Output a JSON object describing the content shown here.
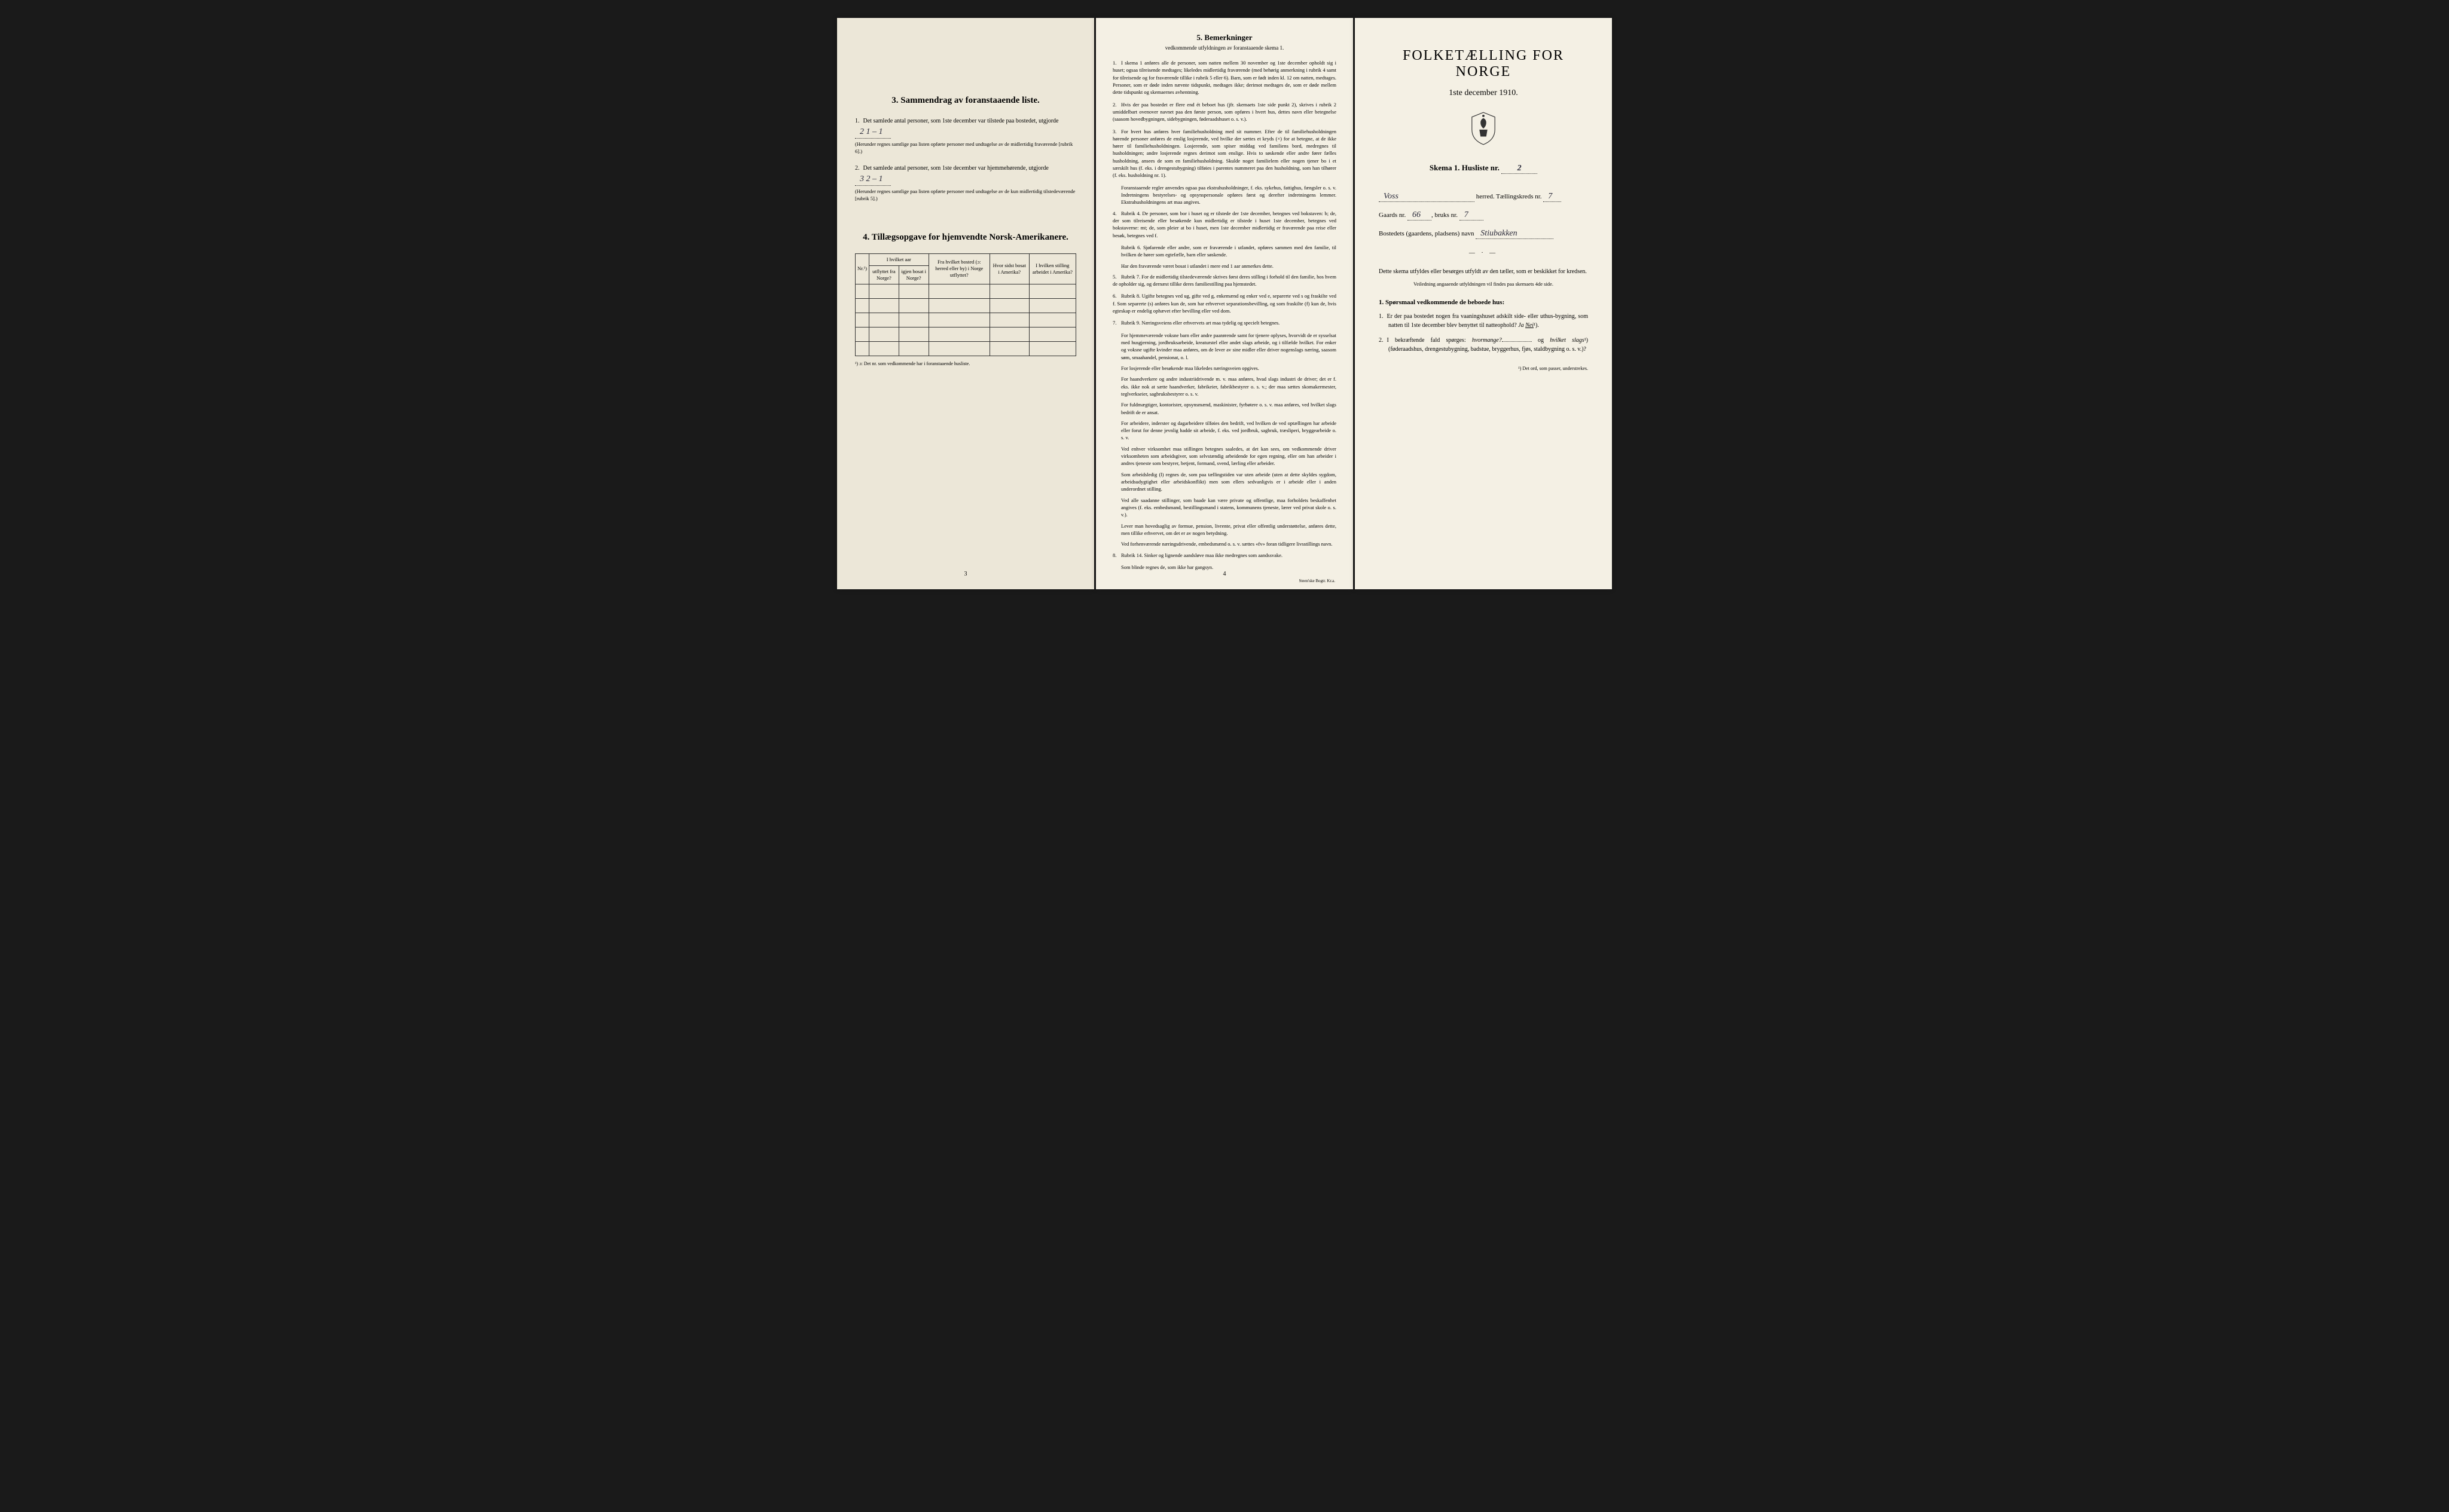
{
  "colors": {
    "page_bg": "#f4f0e4",
    "page_left_bg": "#ece7d8",
    "body_bg": "#1a1a1a",
    "text": "#1a1a1a",
    "handwritten": "#2a2a3a"
  },
  "left": {
    "section3": {
      "heading": "3.   Sammendrag av foranstaaende liste.",
      "item1_pre": "Det samlede antal personer, som 1ste december var tilstede paa bostedet, utgjorde",
      "item1_value": "2    1 – 1",
      "item1_note": "(Herunder regnes samtlige paa listen opførte personer med undtagelse av de midlertidig fraværende [rubrik 6].)",
      "item2_pre": "Det samlede antal personer, som 1ste december var hjemmehørende, utgjorde",
      "item2_value": "3   2 – 1",
      "item2_note": "(Herunder regnes samtlige paa listen opførte personer med undtagelse av de kun midlertidig tilstedeværende [rubrik 5].)"
    },
    "section4": {
      "heading": "4.   Tillægsopgave for hjemvendte Norsk-Amerikanere.",
      "cols": [
        "Nr.¹)",
        "I hvilket aar utflyttet fra Norge?",
        "igjen bosat i Norge?",
        "Fra hvilket bosted (ɔ: herred eller by) i Norge utflyttet?",
        "Hvor sidst bosat i Amerika?",
        "I hvilken stilling arbeidet i Amerika?"
      ],
      "footnote": "¹) ɔ: Det nr. som vedkommende har i foranstaaende husliste."
    },
    "page_no": "3"
  },
  "center": {
    "heading": "5.   Bemerkninger",
    "subtitle": "vedkommende utfyldningen av foranstaaende skema 1.",
    "items": [
      {
        "n": "1.",
        "text": "I skema 1 anføres alle de personer, som natten mellem 30 november og 1ste december opholdt sig i huset; ogsaa tilreisende medtages; likeledes midlertidig fraværende (med behørig anmerkning i rubrik 4 samt for tilreisende og for fraværende tillike i rubrik 5 eller 6). Barn, som er født inden kl. 12 om natten, medtages. Personer, som er døde inden nævnte tidspunkt, medtages ikke; derimot medtages de, som er døde mellem dette tidspunkt og skemaernes avhentning."
      },
      {
        "n": "2.",
        "text": "Hvis der paa bostedet er flere end ét beboet hus (jfr. skemaets 1ste side punkt 2), skrives i rubrik 2 umiddelbart ovenover navnet paa den første person, som opføres i hvert hus, dettes navn eller betegnelse (saasom hovedbygningen, sidebygningen, føderaadshuset o. s. v.)."
      },
      {
        "n": "3.",
        "text": "For hvert hus anføres hver familiehusholdning med sit nummer. Efter de til familiehusholdningen hørende personer anføres de enslig losjerende, ved hvilke der sættes et kryds (×) for at betegne, at de ikke hører til familiehusholdningen. Losjerende, som spiser middag ved familiens bord, medregnes til husholdningen; andre losjerende regnes derimot som enslige. Hvis to søskende eller andre fører fælles husholdning, ansees de som en familiehusholdning. Skulde noget familielem eller nogen tjener bo i et særskilt hus (f. eks. i drengestubygning) tilføies i parentes nummeret paa den husholdning, som han tilhører (f. eks. husholdning nr. 1)."
      },
      {
        "sub": true,
        "text": "Foranstaaende regler anvendes ogsaa paa ekstrahusholdninger, f. eks. sykehus, fattighus, fængsler o. s. v. Indretningens bestyrelses- og opsynspersonale opføres først og derefter indretningens lemmer. Ekstrahusholdningens art maa angives."
      },
      {
        "n": "4.",
        "text": "Rubrik 4. De personer, som bor i huset og er tilstede der 1ste december, betegnes ved bokstaven: b; de, der som tilreisende eller besøkende kun midlertidig er tilstede i huset 1ste december, betegnes ved bokstaverne: mt; de, som pleier at bo i huset, men 1ste december midlertidig er fraværende paa reise eller besøk, betegnes ved f."
      },
      {
        "sub": true,
        "text": "Rubrik 6. Sjøfarende eller andre, som er fraværende i utlandet, opføres sammen med den familie, til hvilken de hører som egtefælle, barn eller søskende."
      },
      {
        "sub": true,
        "text": "Har den fraværende været bosat i utlandet i mere end 1 aar anmerkes dette."
      },
      {
        "n": "5.",
        "text": "Rubrik 7. For de midlertidig tilstedeværende skrives først deres stilling i forhold til den familie, hos hvem de opholder sig, og dernæst tillike deres familiestilling paa hjemstedet."
      },
      {
        "n": "6.",
        "text": "Rubrik 8. Ugifte betegnes ved ug, gifte ved g, enkemænd og enker ved e, separerte ved s og fraskilte ved f. Som separerte (s) anføres kun de, som har erhvervet separationsbevilling, og som fraskilte (f) kun de, hvis egteskap er endelig ophævet efter bevilling eller ved dom."
      },
      {
        "n": "7.",
        "text": "Rubrik 9. Næringsveiens eller erhvervets art maa tydelig og specielt betegnes."
      },
      {
        "sub": true,
        "text": "For hjemmeværende voksne barn eller andre paarørende samt for tjenere oplyses, hvorvidt de er sysselsat med husgjerning, jordbruksarbeide, kreaturstel eller andet slags arbeide, og i tilfælde hvilket. For enker og voksne ugifte kvinder maa anføres, om de lever av sine midler eller driver nogenslags næring, saasom søm, smaahandel, pensionat, o. l."
      },
      {
        "sub": true,
        "text": "For losjerende eller besøkende maa likeledes næringsveien opgives."
      },
      {
        "sub": true,
        "text": "For haandverkere og andre industriidrivende m. v. maa anføres, hvad slags industri de driver; det er f. eks. ikke nok at sætte haandverker, fabrikeier, fabrikbestyrer o. s. v.; der maa sættes skomakermester, teglverkseier, sagbruksbestyrer o. s. v."
      },
      {
        "sub": true,
        "text": "For fuldmægtiger, kontorister, opsynsmænd, maskinister, fyrbøtere o. s. v. maa anføres, ved hvilket slags bedrift de er ansat."
      },
      {
        "sub": true,
        "text": "For arbeidere, inderster og dagarbeidere tilføies den bedrift, ved hvilken de ved optællingen har arbeide eller forut for denne jevnlig hadde sit arbeide, f. eks. ved jordbruk, sagbruk, træsliperi, bryggearbeide o. s. v."
      },
      {
        "sub": true,
        "text": "Ved enhver virksomhet maa stillingen betegnes saaledes, at det kan sees, om vedkommende driver virksomheten som arbeidsgiver, som selvstændig arbeidende for egen regning, eller om han arbeider i andres tjeneste som bestyrer, betjent, formand, svend, lærling eller arbeider."
      },
      {
        "sub": true,
        "text": "Som arbeidsledig (l) regnes de, som paa tællingstiden var uten arbeide (uten at dette skyldes sygdom, arbeidsudygtighet eller arbeidskonflikt) men som ellers sedvanligvis er i arbeide eller i anden underordnet stilling."
      },
      {
        "sub": true,
        "text": "Ved alle saadanne stillinger, som baade kan være private og offentlige, maa forholdets beskaffenhet angives (f. eks. embedsmand, bestillingsmand i statens, kommunens tjeneste, lærer ved privat skole o. s. v.)."
      },
      {
        "sub": true,
        "text": "Lever man hovedsaglig av formue, pension, livrente, privat eller offentlig understøttelse, anføres dette, men tillike erhvervet, om det er av nogen betydning."
      },
      {
        "sub": true,
        "text": "Ved forhenværende næringsdrivende, embedsmænd o. s. v. sættes «fv» foran tidligere livsstillings navn."
      },
      {
        "n": "8.",
        "text": "Rubrik 14. Sinker og lignende aandsløve maa ikke medregnes som aandssvake."
      },
      {
        "sub": true,
        "text": "Som blinde regnes de, som ikke har gangsyn."
      }
    ],
    "page_no": "4",
    "printer": "Steen'ske Bogtr.   Kr.a."
  },
  "right": {
    "title": "FOLKETÆLLING FOR NORGE",
    "date": "1ste december 1910.",
    "skema_label": "Skema 1.   Husliste nr.",
    "skema_value": "2",
    "herred_label": "herred.   Tællingskreds nr.",
    "herred_value": "Voss",
    "kreds_value": "7",
    "gaard_label": "Gaards nr.",
    "gaard_value": "66",
    "bruk_label": "bruks nr.",
    "bruk_value": "7",
    "bosted_label": "Bostedets (gaardens, pladsens) navn",
    "bosted_value": "Stiubakken",
    "instructions": "Dette skema utfyldes eller besørges utfyldt av den tæller, som er beskikket for kredsen.",
    "instructions_small": "Veiledning angaaende utfyldningen vil findes paa skemaets 4de side.",
    "q_heading": "1. Spørsmaal vedkommende de beboede hus:",
    "q1": "Er der paa bostedet nogen fra vaaningshuset adskilt side- eller uthus-bygning, som natten til 1ste december blev benyttet til natteophold?",
    "q1_ja": "Ja",
    "q1_nei": "Nei",
    "q1_sup": "¹).",
    "q2_pre": "I bekræftende fald spørges:",
    "q2_hvormange": "hvormange?",
    "q2_og": "og",
    "q2_hvilket": "hvilket slags",
    "q2_sup": "¹)",
    "q2_note": "(føderaadshus, drengestubygning, badstue, bryggerhus, fjøs, staldbygning o. s. v.)?",
    "footnote": "¹) Det ord, som passer, understrekes."
  }
}
